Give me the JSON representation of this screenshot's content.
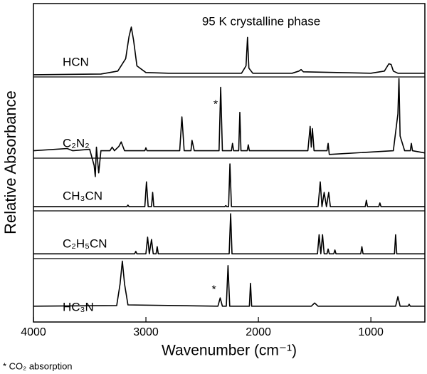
{
  "chart_data": {
    "type": "line",
    "title": "95 K crystalline phase",
    "xlabel": "Wavenumber (cm⁻¹)",
    "ylabel": "Relative Absorbance",
    "footnote": "* CO₂ absorption",
    "xlim": [
      4000,
      520
    ],
    "xticks": [
      4000,
      3000,
      2000,
      1000
    ],
    "series": [
      {
        "name": "HCN",
        "color": "#000000",
        "ylim": [
          0,
          1
        ],
        "x": [
          4000,
          3400,
          3250,
          3180,
          3150,
          3130,
          3110,
          3080,
          3000,
          2800,
          2150,
          2110,
          2097,
          2085,
          2050,
          1700,
          1640,
          1620,
          1600,
          1000,
          880,
          840,
          820,
          800,
          760,
          520
        ],
        "values": [
          0.03,
          0.04,
          0.08,
          0.25,
          0.55,
          0.68,
          0.5,
          0.15,
          0.06,
          0.05,
          0.05,
          0.15,
          0.54,
          0.12,
          0.05,
          0.05,
          0.08,
          0.1,
          0.07,
          0.05,
          0.08,
          0.18,
          0.17,
          0.08,
          0.05,
          0.05
        ]
      },
      {
        "name": "C₂N₂",
        "color": "#000000",
        "ylim": [
          -0.1,
          1
        ],
        "x": [
          4000,
          3700,
          3650,
          3500,
          3460,
          3450,
          3440,
          3420,
          3400,
          3320,
          3300,
          3280,
          3240,
          3220,
          3190,
          3010,
          3000,
          2990,
          2700,
          2680,
          2660,
          2600,
          2590,
          2570,
          2350,
          2335,
          2320,
          2240,
          2230,
          2220,
          2175,
          2165,
          2155,
          2100,
          2090,
          2080,
          1560,
          1540,
          1530,
          1520,
          1505,
          1390,
          1380,
          1370,
          800,
          760,
          750,
          740,
          700,
          650,
          640,
          630,
          520
        ],
        "values": [
          0,
          0.03,
          0,
          0.02,
          -0.2,
          -0.35,
          0.05,
          -0.3,
          0,
          0,
          0.05,
          0,
          0.06,
          0.12,
          0,
          0,
          0.04,
          0,
          0,
          0.46,
          0,
          0,
          0.14,
          0,
          0,
          0.86,
          0,
          0,
          0.1,
          0,
          0,
          0.52,
          0,
          0,
          0.08,
          0,
          0,
          0.33,
          0.05,
          0.3,
          0,
          0,
          0.1,
          -0.05,
          0,
          0.5,
          0.98,
          0.2,
          0,
          0,
          0.1,
          0,
          -0.03
        ]
      },
      {
        "name": "CH₃CN",
        "color": "#000000",
        "ylim": [
          0,
          1
        ],
        "x": [
          4000,
          3170,
          3160,
          3150,
          3010,
          2995,
          2980,
          2950,
          2940,
          2930,
          2300,
          2290,
          2280,
          2265,
          2253,
          2240,
          1470,
          1450,
          1435,
          1415,
          1395,
          1375,
          1360,
          1050,
          1040,
          1030,
          930,
          920,
          910,
          520
        ],
        "values": [
          0.08,
          0.08,
          0.11,
          0.08,
          0.08,
          0.55,
          0.08,
          0.08,
          0.35,
          0.08,
          0.08,
          0.1,
          0.08,
          0.08,
          0.89,
          0.08,
          0.08,
          0.55,
          0.08,
          0.35,
          0.08,
          0.35,
          0.08,
          0.08,
          0.2,
          0.08,
          0.08,
          0.15,
          0.08,
          0.08
        ]
      },
      {
        "name": "C₂H₅CN",
        "color": "#000000",
        "ylim": [
          0,
          1
        ],
        "x": [
          4000,
          3100,
          3090,
          3080,
          3000,
          2985,
          2970,
          2950,
          2935,
          2910,
          2900,
          2890,
          2260,
          2247,
          2235,
          1475,
          1460,
          1445,
          1430,
          1415,
          1390,
          1380,
          1370,
          1330,
          1320,
          1310,
          1090,
          1080,
          1070,
          790,
          780,
          770,
          520
        ],
        "values": [
          0.1,
          0.1,
          0.15,
          0.1,
          0.1,
          0.45,
          0.1,
          0.4,
          0.1,
          0.1,
          0.25,
          0.1,
          0.1,
          0.94,
          0.1,
          0.1,
          0.5,
          0.1,
          0.5,
          0.1,
          0.1,
          0.2,
          0.1,
          0.1,
          0.18,
          0.1,
          0.1,
          0.25,
          0.1,
          0.1,
          0.5,
          0.1,
          0.1
        ]
      },
      {
        "name": "HC₃N",
        "color": "#000000",
        "ylim": [
          0,
          1
        ],
        "x": [
          4000,
          3260,
          3230,
          3210,
          3190,
          3160,
          2360,
          2340,
          2320,
          2285,
          2270,
          2255,
          2080,
          2070,
          2060,
          1530,
          1500,
          1470,
          780,
          760,
          740,
          670,
          660,
          650,
          520
        ],
        "values": [
          0.25,
          0.26,
          0.6,
          0.96,
          0.6,
          0.27,
          0.25,
          0.38,
          0.25,
          0.25,
          0.89,
          0.25,
          0.25,
          0.61,
          0.25,
          0.25,
          0.3,
          0.25,
          0.25,
          0.4,
          0.25,
          0.25,
          0.28,
          0.25,
          0.25
        ],
        "annotations": []
      }
    ],
    "annotations": [
      {
        "text": "*",
        "series": 1,
        "x": 2380,
        "y": 0.62
      },
      {
        "text": "*",
        "series": 4,
        "x": 2395,
        "y": 0.5
      }
    ]
  }
}
